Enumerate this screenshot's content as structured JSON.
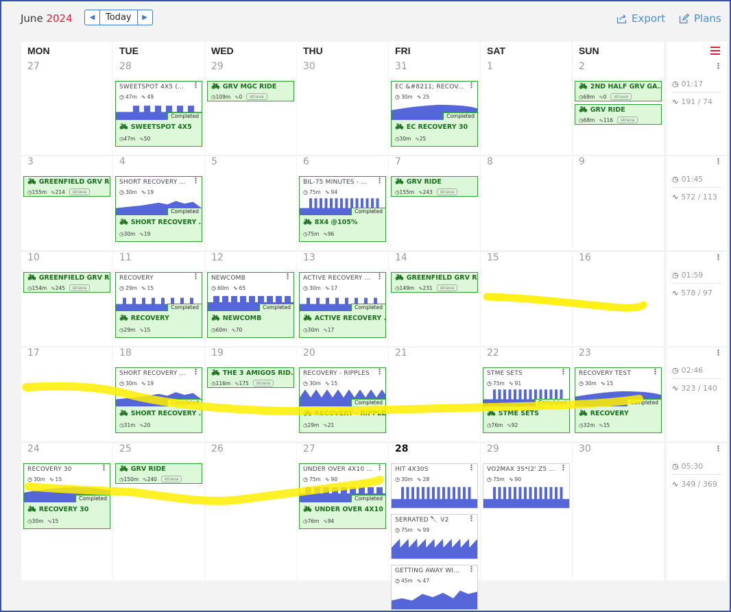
{
  "header": {
    "month": "June",
    "year": "2024",
    "today_label": "Today",
    "export_label": "Export",
    "plans_label": "Plans"
  },
  "colors": {
    "accent": "#4a8dd6",
    "year_red": "#d9203a",
    "completed_green": "#2ea032",
    "graph_blue": "#5567d8",
    "highlight": "#ffee00"
  },
  "days_of_week": [
    "MON",
    "TUE",
    "WED",
    "THU",
    "FRI",
    "SAT",
    "SUN"
  ],
  "weeks": [
    {
      "days": [
        "27",
        "28",
        "29",
        "30",
        "31",
        "1",
        "2"
      ],
      "summary": {
        "time": "01:17",
        "load": "191 / 74"
      }
    },
    {
      "days": [
        "3",
        "4",
        "5",
        "6",
        "7",
        "8",
        "9"
      ],
      "summary": {
        "time": "01:45",
        "load": "572 / 113"
      }
    },
    {
      "days": [
        "10",
        "11",
        "12",
        "13",
        "14",
        "15",
        "16"
      ],
      "summary": {
        "time": "01:59",
        "load": "578 / 97"
      }
    },
    {
      "days": [
        "17",
        "18",
        "19",
        "20",
        "21",
        "22",
        "23"
      ],
      "summary": {
        "time": "02:46",
        "load": "323 / 140"
      }
    },
    {
      "days": [
        "24",
        "25",
        "26",
        "27",
        "28",
        "29",
        "30"
      ],
      "summary": {
        "time": "05:30",
        "load": "349 / 369"
      }
    }
  ],
  "completed_label": "Completed",
  "strava_label": "strava",
  "workouts": [
    {
      "week": 0,
      "day": 1,
      "kind": "pair",
      "title": "SWEETSPOT 4X5 (...",
      "dur": "47m",
      "tss": "49",
      "ctitle": "SWEETSPOT 4X5",
      "cdur": "47m",
      "ctss": "50",
      "shape": "blocks"
    },
    {
      "week": 0,
      "day": 2,
      "kind": "done",
      "ctitle": "GRV MGC RIDE",
      "cdur": "109m",
      "ctss": "0",
      "strava": true
    },
    {
      "week": 0,
      "day": 4,
      "kind": "pair",
      "title": "EC &#8211; RECOV...",
      "dur": "30m",
      "tss": "25",
      "ctitle": "EC RECOVERY 30",
      "cdur": "30m",
      "ctss": "25",
      "shape": "hill"
    },
    {
      "week": 0,
      "day": 6,
      "kind": "done",
      "ctitle": "2ND HALF GRV GA...",
      "cdur": "68m",
      "ctss": "0",
      "strava": true
    },
    {
      "week": 0,
      "day": 6,
      "kind": "done2",
      "ctitle": "GRV RIDE",
      "cdur": "68m",
      "ctss": "116",
      "strava": true
    },
    {
      "week": 1,
      "day": 0,
      "kind": "done",
      "ctitle": "GREENFIELD GRV RI...",
      "cdur": "155m",
      "ctss": "214",
      "strava": true
    },
    {
      "week": 1,
      "day": 1,
      "kind": "pair",
      "title": "SHORT RECOVERY ...",
      "dur": "30m",
      "tss": "19",
      "ctitle": "SHORT RECOVERY ...",
      "cdur": "30m",
      "ctss": "19",
      "shape": "ramp"
    },
    {
      "week": 1,
      "day": 3,
      "kind": "pair",
      "title": "BIL-75 MINUTES - ...",
      "dur": "75m",
      "tss": "94",
      "ctitle": "8X4 @105%",
      "cdur": "75m",
      "ctss": "96",
      "shape": "tall"
    },
    {
      "week": 1,
      "day": 4,
      "kind": "done",
      "ctitle": "GRV RIDE",
      "cdur": "155m",
      "ctss": "243",
      "strava": true
    },
    {
      "week": 2,
      "day": 0,
      "kind": "done",
      "ctitle": "GREENFIELD GRV RI...",
      "cdur": "154m",
      "ctss": "245",
      "strava": true
    },
    {
      "week": 2,
      "day": 1,
      "kind": "pair",
      "title": "RECOVERY",
      "dur": "29m",
      "tss": "15",
      "ctitle": "RECOVERY",
      "cdur": "29m",
      "ctss": "15",
      "shape": "spikes"
    },
    {
      "week": 2,
      "day": 2,
      "kind": "pair",
      "title": "NEWCOMB",
      "dur": "60m",
      "tss": "65",
      "ctitle": "NEWCOMB",
      "cdur": "60m",
      "ctss": "70",
      "shape": "blocks2"
    },
    {
      "week": 2,
      "day": 3,
      "kind": "pair",
      "title": "ACTIVE RECOVERY ...",
      "dur": "30m",
      "tss": "17",
      "ctitle": "ACTIVE RECOVERY ...",
      "cdur": "30m",
      "ctss": "17",
      "shape": "spikes"
    },
    {
      "week": 2,
      "day": 4,
      "kind": "done",
      "ctitle": "GREENFIELD GRV RI...",
      "cdur": "149m",
      "ctss": "231",
      "strava": true
    },
    {
      "week": 3,
      "day": 1,
      "kind": "pair",
      "title": "SHORT RECOVERY ...",
      "dur": "30m",
      "tss": "19",
      "ctitle": "SHORT RECOVERY ...",
      "cdur": "31m",
      "ctss": "20",
      "shape": "ramp"
    },
    {
      "week": 3,
      "day": 2,
      "kind": "done",
      "ctitle": "THE 3 AMIGOS RID...",
      "cdur": "116m",
      "ctss": "175",
      "strava": true
    },
    {
      "week": 3,
      "day": 3,
      "kind": "pair",
      "title": "RECOVERY - RIPPLES",
      "dur": "30m",
      "tss": "15",
      "ctitle": "RECOVERY - RIPPLES",
      "cdur": "29m",
      "ctss": "21",
      "shape": "triangles"
    },
    {
      "week": 3,
      "day": 5,
      "kind": "pair",
      "title": "STME SETS",
      "dur": "75m",
      "tss": "91",
      "ctitle": "STME SETS",
      "cdur": "76m",
      "ctss": "92",
      "shape": "tall"
    },
    {
      "week": 3,
      "day": 6,
      "kind": "pair",
      "title": "RECOVERY TEST",
      "dur": "30m",
      "tss": "15",
      "ctitle": "RECOVERY",
      "cdur": "32m",
      "ctss": "15",
      "shape": "hill"
    },
    {
      "week": 4,
      "day": 0,
      "kind": "pair",
      "title": "RECOVERY 30",
      "dur": "30m",
      "tss": "15",
      "ctitle": "RECOVERY 30",
      "cdur": "30m",
      "ctss": "15",
      "shape": "hill"
    },
    {
      "week": 4,
      "day": 1,
      "kind": "done",
      "ctitle": "GRV RIDE",
      "cdur": "150m",
      "ctss": "240",
      "strava": true
    },
    {
      "week": 4,
      "day": 3,
      "kind": "pair",
      "title": "UNDER OVER 4X10 ...",
      "dur": "75m",
      "tss": "90",
      "ctitle": "UNDER OVER 4X10 ...",
      "cdur": "76m",
      "ctss": "94",
      "shape": "blocks2"
    },
    {
      "week": 4,
      "day": 4,
      "kind": "plan",
      "slot": 0,
      "title": "HIT 4X30S",
      "dur": "30m",
      "tss": "28",
      "shape": "tall"
    },
    {
      "week": 4,
      "day": 4,
      "kind": "plan",
      "slot": 1,
      "title": "SERRATED 🔪 V2",
      "dur": "75m",
      "tss": "99",
      "shape": "saw"
    },
    {
      "week": 4,
      "day": 4,
      "kind": "plan",
      "slot": 2,
      "title": "GETTING AWAY WI...",
      "dur": "45m",
      "tss": "47",
      "shape": "steps"
    },
    {
      "week": 4,
      "day": 5,
      "kind": "plan",
      "slot": 0,
      "title": "VO2MAX 3S*(2' Z5 ...",
      "dur": "75m",
      "tss": "90",
      "shape": "tall"
    }
  ]
}
